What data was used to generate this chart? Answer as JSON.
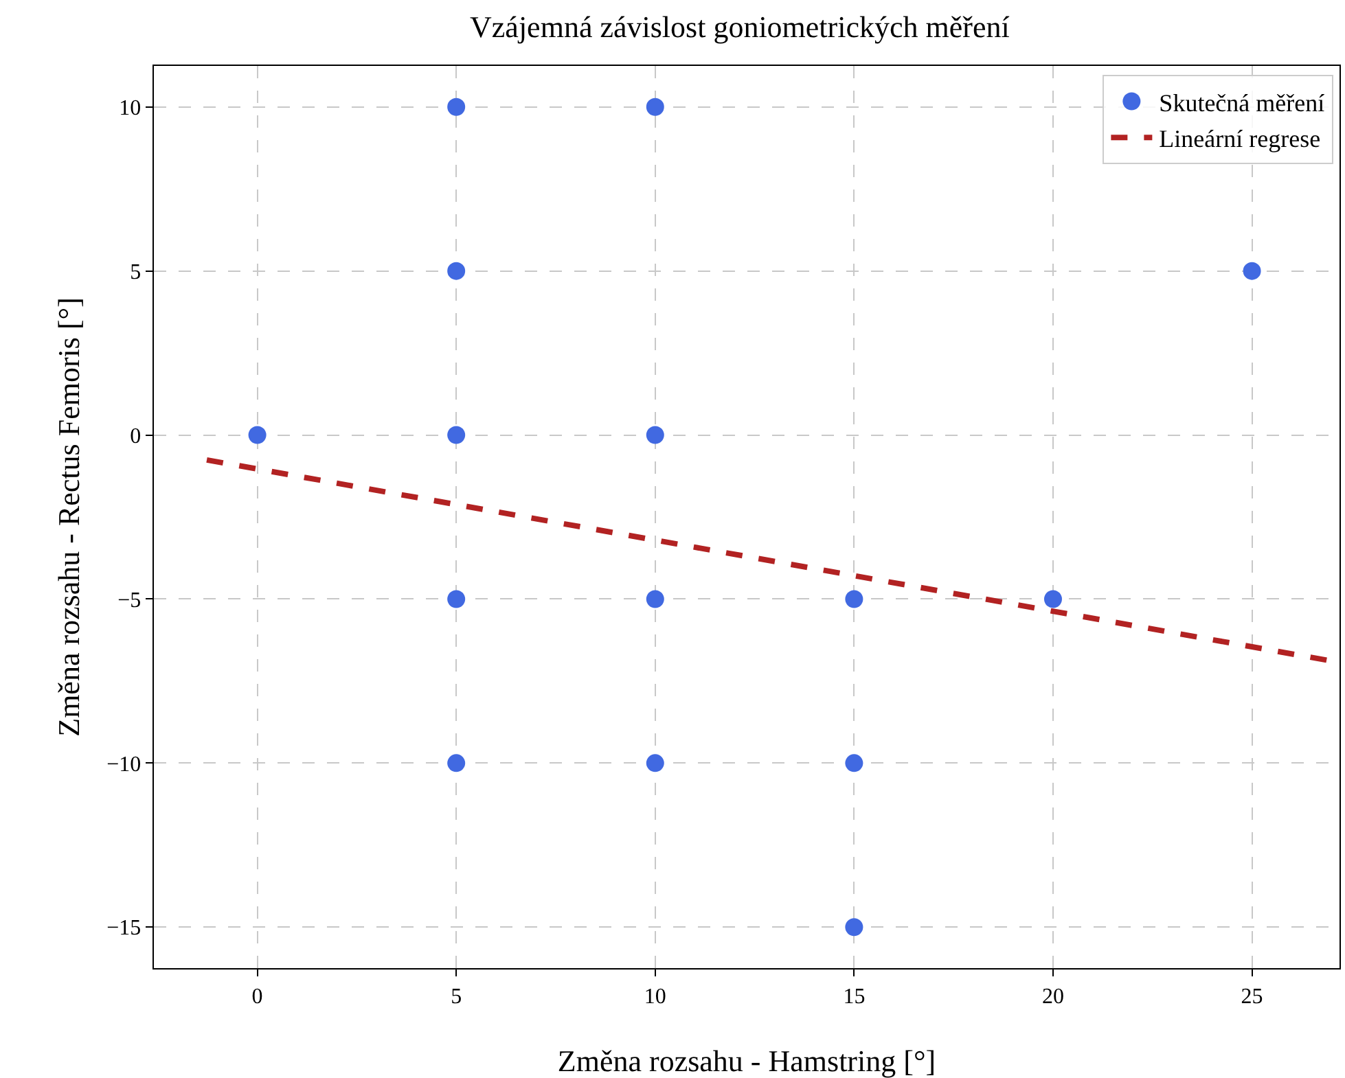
{
  "chart_data": {
    "type": "scatter",
    "title": "Vzájemná závislost goniometrických měření",
    "xlabel": "Změna rozsahu - Hamstring [°]",
    "ylabel": "Změna rozsahu - Rectus Femoris [°]",
    "xlim": [
      -2.6,
      27.2
    ],
    "ylim": [
      -16.25,
      11.25
    ],
    "xticks": [
      0,
      5,
      10,
      15,
      20,
      25
    ],
    "yticks": [
      -15,
      -10,
      -5,
      0,
      5,
      10
    ],
    "grid": true,
    "legend": "top right",
    "series": [
      {
        "name": "Skutečná měření",
        "marker": "circle",
        "color": "#4169e1",
        "x": [
          0,
          5,
          10,
          5,
          25,
          5,
          10,
          5,
          10,
          15,
          20,
          5,
          10,
          15,
          15
        ],
        "values": [
          0,
          10,
          10,
          5,
          5,
          0,
          0,
          -5,
          -5,
          -5,
          -5,
          -10,
          -10,
          -10,
          -15
        ]
      },
      {
        "name": "Lineární regrese",
        "type": "line",
        "color": "#b22222",
        "line_style": "dashed",
        "x": [
          -1.27,
          26.96
        ],
        "values": [
          -0.76,
          -6.88
        ]
      }
    ]
  }
}
